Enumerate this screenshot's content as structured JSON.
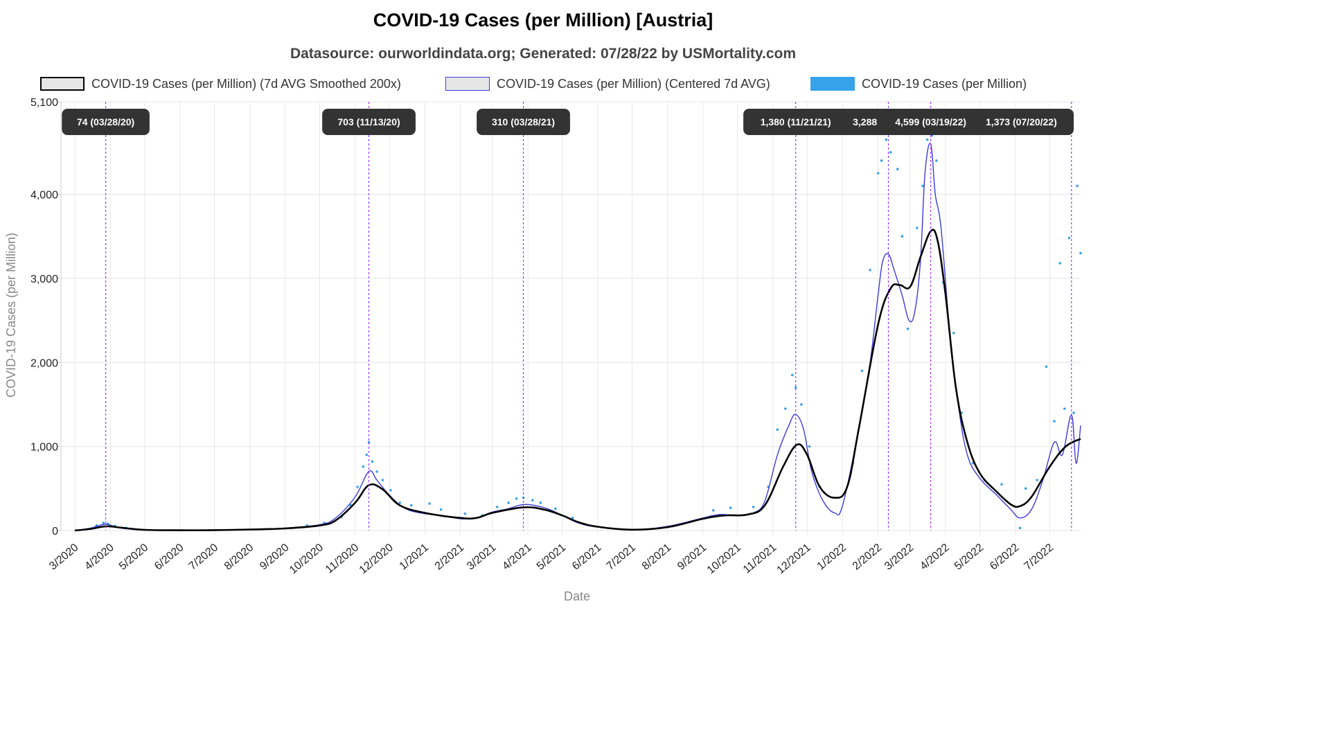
{
  "title": "COVID-19 Cases (per Million) [Austria]",
  "subtitle": "Datasource: ourworldindata.org; Generated: 07/28/22 by USMortality.com",
  "legend": [
    {
      "label": "COVID-19 Cases (per Million) (7d AVG Smoothed 200x)",
      "fill": "#e6e6e6",
      "border": "#000000"
    },
    {
      "label": "COVID-19 Cases (per Million) (Centered 7d AVG)",
      "fill": "#e6e6e6",
      "border": "#3a3ad6"
    },
    {
      "label": "COVID-19 Cases (per Million)",
      "fill": "#36a2eb",
      "border": "#36a2eb"
    }
  ],
  "chart_data": {
    "type": "line",
    "title": "COVID-19 Cases (per Million) [Austria]",
    "xlabel": "Date",
    "ylabel": "COVID-19 Cases (per Million)",
    "ylim": [
      0,
      5100
    ],
    "y_ticks": [
      {
        "value": 0,
        "label": "0"
      },
      {
        "value": 1000,
        "label": "1,000"
      },
      {
        "value": 2000,
        "label": "2,000"
      },
      {
        "value": 3000,
        "label": "3,000"
      },
      {
        "value": 4000,
        "label": "4,000"
      },
      {
        "value": 5100,
        "label": "5,100"
      }
    ],
    "x_range": [
      "2020-03-01",
      "2022-07-28"
    ],
    "x_ticks": [
      {
        "date": "2020-03-01",
        "label": "3/2020"
      },
      {
        "date": "2020-04-01",
        "label": "4/2020"
      },
      {
        "date": "2020-05-01",
        "label": "5/2020"
      },
      {
        "date": "2020-06-01",
        "label": "6/2020"
      },
      {
        "date": "2020-07-01",
        "label": "7/2020"
      },
      {
        "date": "2020-08-01",
        "label": "8/2020"
      },
      {
        "date": "2020-09-01",
        "label": "9/2020"
      },
      {
        "date": "2020-10-01",
        "label": "10/2020"
      },
      {
        "date": "2020-11-01",
        "label": "11/2020"
      },
      {
        "date": "2020-12-01",
        "label": "12/2020"
      },
      {
        "date": "2021-01-01",
        "label": "1/2021"
      },
      {
        "date": "2021-02-01",
        "label": "2/2021"
      },
      {
        "date": "2021-03-01",
        "label": "3/2021"
      },
      {
        "date": "2021-04-01",
        "label": "4/2021"
      },
      {
        "date": "2021-05-01",
        "label": "5/2021"
      },
      {
        "date": "2021-06-01",
        "label": "6/2021"
      },
      {
        "date": "2021-07-01",
        "label": "7/2021"
      },
      {
        "date": "2021-08-01",
        "label": "8/2021"
      },
      {
        "date": "2021-09-01",
        "label": "9/2021"
      },
      {
        "date": "2021-10-01",
        "label": "10/2021"
      },
      {
        "date": "2021-11-01",
        "label": "11/2021"
      },
      {
        "date": "2021-12-01",
        "label": "12/2021"
      },
      {
        "date": "2022-01-01",
        "label": "1/2022"
      },
      {
        "date": "2022-02-01",
        "label": "2/2022"
      },
      {
        "date": "2022-03-01",
        "label": "3/2022"
      },
      {
        "date": "2022-04-01",
        "label": "4/2022"
      },
      {
        "date": "2022-05-01",
        "label": "5/2022"
      },
      {
        "date": "2022-06-01",
        "label": "6/2022"
      },
      {
        "date": "2022-07-01",
        "label": "7/2022"
      }
    ],
    "grid": true,
    "legend_position": "top",
    "series": [
      {
        "name": "COVID-19 Cases (per Million) (7d AVG Smoothed 200x)",
        "color": "#000000",
        "style": "line",
        "points": [
          [
            "2020-03-01",
            0
          ],
          [
            "2020-03-15",
            20
          ],
          [
            "2020-03-28",
            50
          ],
          [
            "2020-04-10",
            35
          ],
          [
            "2020-05-01",
            8
          ],
          [
            "2020-06-01",
            3
          ],
          [
            "2020-07-01",
            5
          ],
          [
            "2020-08-01",
            12
          ],
          [
            "2020-09-01",
            25
          ],
          [
            "2020-10-01",
            60
          ],
          [
            "2020-10-15",
            120
          ],
          [
            "2020-11-01",
            330
          ],
          [
            "2020-11-13",
            540
          ],
          [
            "2020-11-25",
            490
          ],
          [
            "2020-12-10",
            300
          ],
          [
            "2021-01-01",
            210
          ],
          [
            "2021-02-01",
            150
          ],
          [
            "2021-02-15",
            150
          ],
          [
            "2021-03-01",
            210
          ],
          [
            "2021-03-28",
            275
          ],
          [
            "2021-04-15",
            250
          ],
          [
            "2021-05-01",
            180
          ],
          [
            "2021-05-15",
            100
          ],
          [
            "2021-06-01",
            45
          ],
          [
            "2021-07-01",
            10
          ],
          [
            "2021-08-01",
            40
          ],
          [
            "2021-09-01",
            140
          ],
          [
            "2021-09-20",
            180
          ],
          [
            "2021-10-10",
            190
          ],
          [
            "2021-10-25",
            300
          ],
          [
            "2021-11-10",
            760
          ],
          [
            "2021-11-22",
            1020
          ],
          [
            "2021-12-01",
            900
          ],
          [
            "2021-12-12",
            520
          ],
          [
            "2021-12-25",
            390
          ],
          [
            "2022-01-05",
            520
          ],
          [
            "2022-01-15",
            1200
          ],
          [
            "2022-02-01",
            2450
          ],
          [
            "2022-02-12",
            2880
          ],
          [
            "2022-02-20",
            2920
          ],
          [
            "2022-03-01",
            2900
          ],
          [
            "2022-03-10",
            3250
          ],
          [
            "2022-03-19",
            3560
          ],
          [
            "2022-03-25",
            3450
          ],
          [
            "2022-04-01",
            2800
          ],
          [
            "2022-04-10",
            1700
          ],
          [
            "2022-04-20",
            1050
          ],
          [
            "2022-05-01",
            680
          ],
          [
            "2022-05-15",
            470
          ],
          [
            "2022-05-28",
            310
          ],
          [
            "2022-06-05",
            290
          ],
          [
            "2022-06-15",
            400
          ],
          [
            "2022-07-01",
            760
          ],
          [
            "2022-07-15",
            1000
          ],
          [
            "2022-07-28",
            1090
          ]
        ]
      },
      {
        "name": "COVID-19 Cases (per Million) (Centered 7d AVG)",
        "color": "#3a3ad6",
        "style": "line",
        "points": [
          [
            "2020-03-01",
            0
          ],
          [
            "2020-03-15",
            30
          ],
          [
            "2020-03-28",
            74
          ],
          [
            "2020-04-10",
            30
          ],
          [
            "2020-05-01",
            5
          ],
          [
            "2020-06-01",
            3
          ],
          [
            "2020-07-01",
            8
          ],
          [
            "2020-08-01",
            15
          ],
          [
            "2020-09-01",
            30
          ],
          [
            "2020-10-01",
            70
          ],
          [
            "2020-10-15",
            150
          ],
          [
            "2020-11-01",
            400
          ],
          [
            "2020-11-13",
            703
          ],
          [
            "2020-11-20",
            600
          ],
          [
            "2020-12-01",
            420
          ],
          [
            "2020-12-15",
            260
          ],
          [
            "2021-01-01",
            200
          ],
          [
            "2021-01-15",
            180
          ],
          [
            "2021-02-01",
            140
          ],
          [
            "2021-02-15",
            150
          ],
          [
            "2021-03-01",
            220
          ],
          [
            "2021-03-15",
            260
          ],
          [
            "2021-03-28",
            310
          ],
          [
            "2021-04-10",
            290
          ],
          [
            "2021-04-20",
            250
          ],
          [
            "2021-05-01",
            180
          ],
          [
            "2021-05-15",
            90
          ],
          [
            "2021-06-01",
            40
          ],
          [
            "2021-07-01",
            10
          ],
          [
            "2021-08-01",
            50
          ],
          [
            "2021-09-01",
            150
          ],
          [
            "2021-09-15",
            190
          ],
          [
            "2021-10-01",
            180
          ],
          [
            "2021-10-15",
            210
          ],
          [
            "2021-10-25",
            350
          ],
          [
            "2021-11-05",
            900
          ],
          [
            "2021-11-15",
            1250
          ],
          [
            "2021-11-21",
            1380
          ],
          [
            "2021-11-28",
            1200
          ],
          [
            "2021-12-05",
            700
          ],
          [
            "2021-12-15",
            350
          ],
          [
            "2021-12-25",
            210
          ],
          [
            "2022-01-01",
            300
          ],
          [
            "2022-01-15",
            1200
          ],
          [
            "2022-01-25",
            2000
          ],
          [
            "2022-02-01",
            2800
          ],
          [
            "2022-02-05",
            3200
          ],
          [
            "2022-02-10",
            3288
          ],
          [
            "2022-02-15",
            3100
          ],
          [
            "2022-02-22",
            2800
          ],
          [
            "2022-02-28",
            2500
          ],
          [
            "2022-03-05",
            2600
          ],
          [
            "2022-03-10",
            3200
          ],
          [
            "2022-03-14",
            4250
          ],
          [
            "2022-03-19",
            4599
          ],
          [
            "2022-03-23",
            4000
          ],
          [
            "2022-03-28",
            3600
          ],
          [
            "2022-04-05",
            2300
          ],
          [
            "2022-04-12",
            1500
          ],
          [
            "2022-04-20",
            900
          ],
          [
            "2022-05-01",
            620
          ],
          [
            "2022-05-15",
            430
          ],
          [
            "2022-05-28",
            250
          ],
          [
            "2022-06-05",
            150
          ],
          [
            "2022-06-15",
            250
          ],
          [
            "2022-06-25",
            600
          ],
          [
            "2022-07-05",
            1050
          ],
          [
            "2022-07-12",
            900
          ],
          [
            "2022-07-20",
            1373
          ],
          [
            "2022-07-24",
            800
          ],
          [
            "2022-07-28",
            1250
          ]
        ]
      },
      {
        "name": "COVID-19 Cases (per Million)",
        "color": "#36a2eb",
        "style": "dots",
        "points": [
          [
            "2020-03-20",
            60
          ],
          [
            "2020-03-26",
            90
          ],
          [
            "2020-03-30",
            80
          ],
          [
            "2020-04-05",
            55
          ],
          [
            "2020-04-15",
            30
          ],
          [
            "2020-09-20",
            60
          ],
          [
            "2020-10-05",
            90
          ],
          [
            "2020-10-20",
            160
          ],
          [
            "2020-10-28",
            300
          ],
          [
            "2020-11-03",
            520
          ],
          [
            "2020-11-08",
            760
          ],
          [
            "2020-11-11",
            900
          ],
          [
            "2020-11-13",
            1050
          ],
          [
            "2020-11-16",
            820
          ],
          [
            "2020-11-20",
            700
          ],
          [
            "2020-11-25",
            600
          ],
          [
            "2020-12-02",
            480
          ],
          [
            "2020-12-10",
            330
          ],
          [
            "2020-12-20",
            300
          ],
          [
            "2021-01-05",
            320
          ],
          [
            "2021-01-15",
            250
          ],
          [
            "2021-02-05",
            200
          ],
          [
            "2021-02-20",
            180
          ],
          [
            "2021-03-05",
            280
          ],
          [
            "2021-03-15",
            330
          ],
          [
            "2021-03-22",
            380
          ],
          [
            "2021-03-28",
            390
          ],
          [
            "2021-04-05",
            360
          ],
          [
            "2021-04-12",
            330
          ],
          [
            "2021-04-25",
            260
          ],
          [
            "2021-05-10",
            150
          ],
          [
            "2021-09-10",
            240
          ],
          [
            "2021-09-25",
            270
          ],
          [
            "2021-10-15",
            280
          ],
          [
            "2021-10-28",
            520
          ],
          [
            "2021-11-05",
            1200
          ],
          [
            "2021-11-12",
            1450
          ],
          [
            "2021-11-18",
            1850
          ],
          [
            "2021-11-21",
            1700
          ],
          [
            "2021-11-26",
            1500
          ],
          [
            "2021-12-03",
            1000
          ],
          [
            "2021-12-12",
            520
          ],
          [
            "2022-01-10",
            800
          ],
          [
            "2022-01-18",
            1900
          ],
          [
            "2022-01-25",
            3100
          ],
          [
            "2022-02-01",
            4250
          ],
          [
            "2022-02-04",
            4400
          ],
          [
            "2022-02-08",
            4650
          ],
          [
            "2022-02-12",
            4500
          ],
          [
            "2022-02-18",
            4300
          ],
          [
            "2022-02-22",
            3500
          ],
          [
            "2022-02-27",
            2400
          ],
          [
            "2022-03-07",
            3600
          ],
          [
            "2022-03-12",
            4100
          ],
          [
            "2022-03-16",
            4650
          ],
          [
            "2022-03-20",
            4700
          ],
          [
            "2022-03-24",
            4400
          ],
          [
            "2022-03-30",
            2950
          ],
          [
            "2022-04-08",
            2350
          ],
          [
            "2022-04-15",
            1400
          ],
          [
            "2022-04-25",
            800
          ],
          [
            "2022-05-05",
            600
          ],
          [
            "2022-05-20",
            550
          ],
          [
            "2022-06-05",
            30
          ],
          [
            "2022-06-10",
            500
          ],
          [
            "2022-06-20",
            600
          ],
          [
            "2022-06-28",
            1950
          ],
          [
            "2022-07-05",
            1300
          ],
          [
            "2022-07-10",
            3180
          ],
          [
            "2022-07-14",
            1450
          ],
          [
            "2022-07-18",
            3480
          ],
          [
            "2022-07-22",
            1400
          ],
          [
            "2022-07-25",
            4100
          ],
          [
            "2022-07-28",
            3300
          ]
        ]
      }
    ],
    "annotations": [
      {
        "date": "2020-03-28",
        "label": "74 (03/28/20)"
      },
      {
        "date": "2020-11-13",
        "label": "703 (11/13/20)"
      },
      {
        "date": "2021-03-28",
        "label": "310 (03/28/21)"
      },
      {
        "date": "2021-11-21",
        "label": "1,380 (11/21/21)"
      },
      {
        "date": "2022-02-10",
        "label": "3,288 (02/10/22)"
      },
      {
        "date": "2022-03-19",
        "label": "4,599 (03/19/22)"
      },
      {
        "date": "2022-07-20",
        "label": "1,373 (07/20/22)"
      }
    ],
    "annotation_color": "#9b30ff"
  }
}
